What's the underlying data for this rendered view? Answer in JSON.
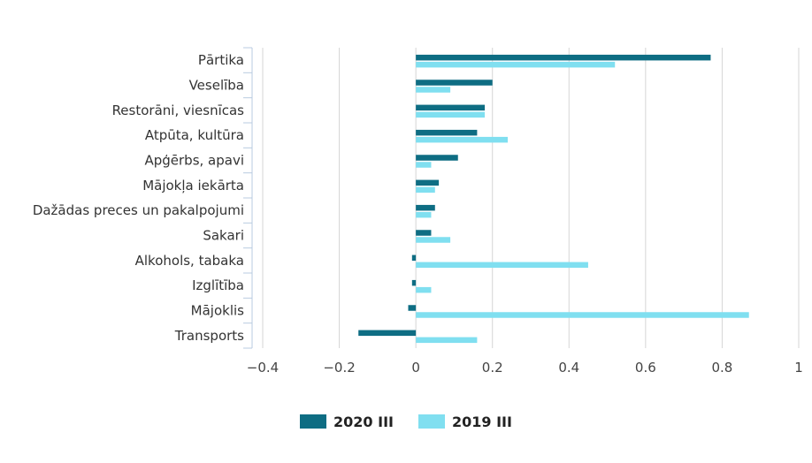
{
  "chart_data": {
    "type": "bar",
    "orientation": "horizontal",
    "categories": [
      "Pārtika",
      "Veselība",
      "Restorāni, viesnīcas",
      "Atpūta, kultūra",
      "Apģērbs, apavi",
      "Mājokļa iekārta",
      "Dažādas preces un pakalpojumi",
      "Sakari",
      "Alkohols, tabaka",
      "Izglītība",
      "Mājoklis",
      "Transports"
    ],
    "series": [
      {
        "name": "2020 III",
        "color": "#0e6d83",
        "values": [
          0.77,
          0.2,
          0.18,
          0.16,
          0.11,
          0.06,
          0.05,
          0.04,
          -0.01,
          -0.01,
          -0.02,
          -0.15
        ]
      },
      {
        "name": "2019 III",
        "color": "#80dff0",
        "values": [
          0.52,
          0.09,
          0.18,
          0.24,
          0.04,
          0.05,
          0.04,
          0.09,
          0.45,
          0.04,
          0.87,
          0.16
        ]
      }
    ],
    "xlim": [
      -0.4,
      1
    ],
    "xticks": [
      -0.4,
      -0.2,
      0,
      0.2,
      0.4,
      0.6,
      0.8,
      1
    ],
    "xtick_labels": [
      "−0.4",
      "−0.2",
      "0",
      "0.2",
      "0.4",
      "0.6",
      "0.8",
      "1"
    ],
    "grid": true,
    "legend_position": "bottom-center",
    "title": "",
    "xlabel": "",
    "ylabel": ""
  }
}
